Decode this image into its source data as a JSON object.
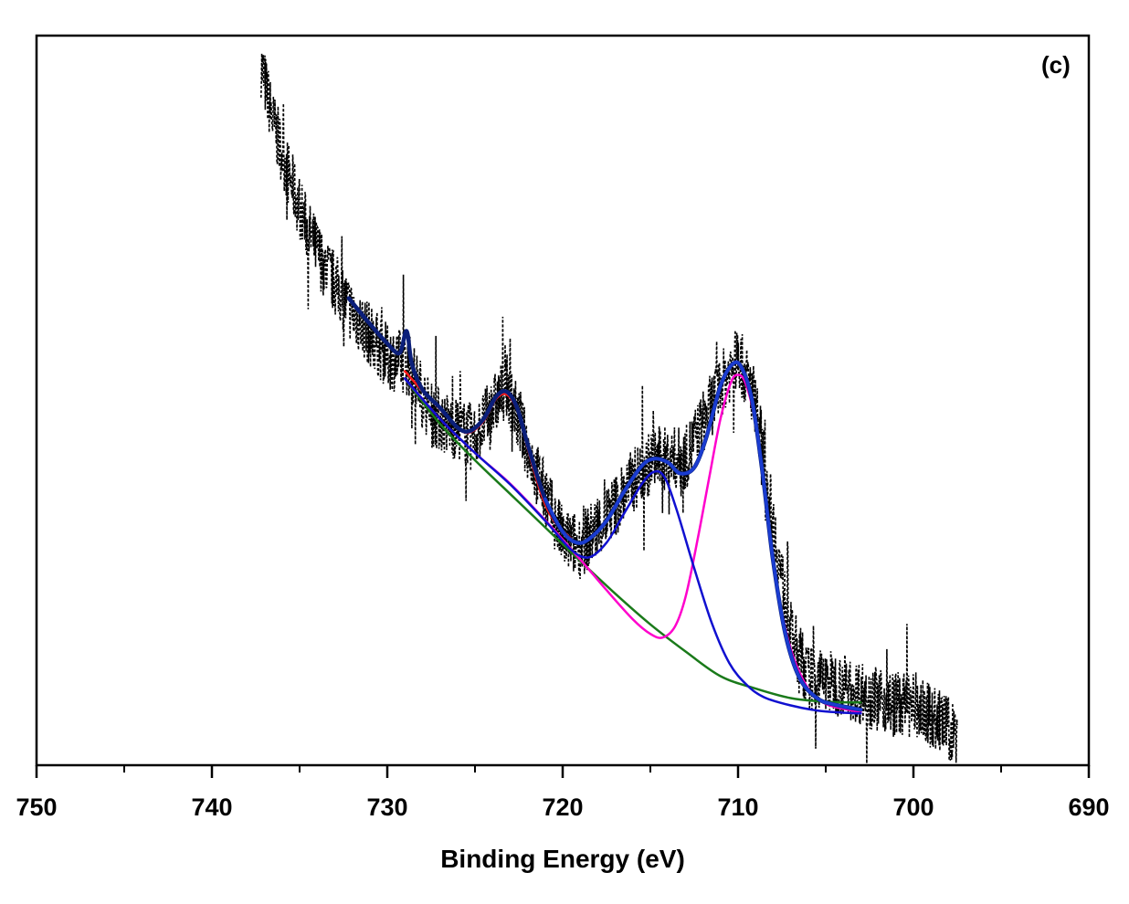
{
  "chart_data": {
    "type": "line",
    "title": "",
    "panel_label": "(c)",
    "xlabel": "Binding Energy (eV)",
    "ylabel": "",
    "xlim": [
      750,
      690
    ],
    "x_reversed": true,
    "ylim": [
      0,
      100
    ],
    "grid": false,
    "legend": "none",
    "x_ticks": [
      750,
      740,
      730,
      720,
      710,
      700,
      690
    ],
    "x_tick_labels": [
      "750",
      "740",
      "730",
      "720",
      "710",
      "700",
      "690"
    ],
    "raw_data": {
      "style": "black dashed noisy points",
      "color": "#000000",
      "x_range": [
        737.2,
        697.5
      ],
      "noise_amplitude": 4.5,
      "envelope": [
        [
          737.2,
          96
        ],
        [
          736.5,
          88
        ],
        [
          735.5,
          80
        ],
        [
          734.5,
          73
        ],
        [
          733.5,
          68
        ],
        [
          732,
          62
        ],
        [
          730,
          56
        ],
        [
          728.8,
          55
        ],
        [
          727.5,
          48
        ],
        [
          726,
          46
        ],
        [
          725,
          45
        ],
        [
          723.2,
          52
        ],
        [
          721.5,
          40
        ],
        [
          720,
          31
        ],
        [
          719,
          30
        ],
        [
          717.5,
          34
        ],
        [
          716,
          39
        ],
        [
          714.8,
          42
        ],
        [
          713,
          42
        ],
        [
          711,
          52
        ],
        [
          710,
          56
        ],
        [
          709,
          50
        ],
        [
          708,
          33
        ],
        [
          707,
          18
        ],
        [
          706,
          12
        ],
        [
          704,
          11
        ],
        [
          702,
          9
        ],
        [
          700,
          8
        ],
        [
          698.5,
          6
        ],
        [
          697.5,
          4
        ]
      ]
    },
    "series": [
      {
        "color": "#0b1f7a",
        "width": 4.5,
        "points": [
          [
            732.2,
            64
          ],
          [
            731,
            60.5
          ],
          [
            730,
            57.8
          ],
          [
            729.3,
            56.5
          ],
          [
            728.9,
            59.5
          ],
          [
            728.6,
            55
          ],
          [
            728,
            51.5
          ],
          [
            727,
            49
          ],
          [
            726,
            46.3
          ],
          [
            725.3,
            45.8
          ],
          [
            724.5,
            47.5
          ],
          [
            723.8,
            50.5
          ],
          [
            723.2,
            51.2
          ],
          [
            722.6,
            49
          ],
          [
            722,
            44
          ],
          [
            721,
            36.5
          ],
          [
            720,
            32
          ],
          [
            719.2,
            30.5
          ],
          [
            718.5,
            31
          ],
          [
            717.5,
            33.5
          ],
          [
            716.5,
            37.5
          ],
          [
            715.5,
            41
          ],
          [
            714.8,
            42
          ],
          [
            714,
            41.5
          ],
          [
            713.3,
            40
          ],
          [
            712.5,
            40.8
          ],
          [
            711.8,
            45
          ],
          [
            711,
            52
          ],
          [
            710.3,
            55
          ],
          [
            709.8,
            54.5
          ],
          [
            709.2,
            50
          ],
          [
            708.6,
            40
          ],
          [
            708,
            28
          ],
          [
            707.3,
            18
          ],
          [
            706.5,
            12
          ],
          [
            705.5,
            9.2
          ],
          [
            704.5,
            8.3
          ],
          [
            703,
            7.6
          ]
        ]
      },
      {
        "color": "#1a3cd0",
        "width": 3.5,
        "points": [
          [
            721,
            36.5
          ],
          [
            720,
            32
          ],
          [
            719.2,
            30.5
          ],
          [
            718.5,
            31
          ],
          [
            717.5,
            33.5
          ],
          [
            716.5,
            37.5
          ],
          [
            715.5,
            41
          ],
          [
            714.8,
            42
          ],
          [
            714,
            41.5
          ],
          [
            713.3,
            40
          ],
          [
            712.5,
            40.8
          ],
          [
            711.8,
            45
          ],
          [
            711,
            52
          ],
          [
            710.3,
            55
          ],
          [
            709.8,
            54.5
          ],
          [
            709.2,
            50
          ],
          [
            708.6,
            40
          ],
          [
            708,
            28
          ],
          [
            707.3,
            18
          ],
          [
            706.5,
            12
          ],
          [
            705.5,
            9.2
          ],
          [
            704.5,
            8.3
          ],
          [
            703,
            7.6
          ]
        ]
      },
      {
        "color": "#ff1a1a",
        "width": 2.5,
        "points": [
          [
            729,
            54
          ],
          [
            728,
            51.3
          ],
          [
            727,
            48.8
          ],
          [
            726,
            46.2
          ],
          [
            725.3,
            45.6
          ],
          [
            724.5,
            47.2
          ],
          [
            723.8,
            50.2
          ],
          [
            723.2,
            50.8
          ],
          [
            722.6,
            48.7
          ],
          [
            722,
            43.5
          ],
          [
            721.2,
            37
          ],
          [
            720.5,
            33.5
          ],
          [
            719.5,
            31
          ]
        ]
      },
      {
        "color": "#ff00cc",
        "width": 2.5,
        "points": [
          [
            729,
            53
          ],
          [
            727,
            47.5
          ],
          [
            725,
            42.8
          ],
          [
            723,
            38.6
          ],
          [
            721,
            33.6
          ],
          [
            719,
            28.2
          ],
          [
            717.5,
            24
          ],
          [
            716,
            20
          ],
          [
            715,
            18
          ],
          [
            714.3,
            17.5
          ],
          [
            713.6,
            19
          ],
          [
            713,
            23
          ],
          [
            712.3,
            31
          ],
          [
            711.6,
            40
          ],
          [
            711,
            47.5
          ],
          [
            710.4,
            52.5
          ],
          [
            710,
            53.5
          ],
          [
            709.6,
            52.5
          ],
          [
            709.1,
            48
          ],
          [
            708.5,
            38
          ],
          [
            707.8,
            25
          ],
          [
            707,
            16
          ],
          [
            706,
            10.5
          ],
          [
            705,
            8.4
          ],
          [
            703.5,
            7.5
          ],
          [
            703,
            7.3
          ]
        ]
      },
      {
        "color": "#1010d0",
        "width": 2.5,
        "points": [
          [
            729,
            53
          ],
          [
            727,
            47.5
          ],
          [
            725,
            42.8
          ],
          [
            723,
            38.5
          ],
          [
            721,
            33.5
          ],
          [
            719.5,
            29.5
          ],
          [
            718.5,
            28.5
          ],
          [
            717.5,
            30.5
          ],
          [
            716.5,
            34.5
          ],
          [
            715.5,
            38.5
          ],
          [
            714.8,
            40.2
          ],
          [
            714.2,
            39.5
          ],
          [
            713.5,
            35
          ],
          [
            712.5,
            27
          ],
          [
            711.5,
            19.5
          ],
          [
            710.5,
            14
          ],
          [
            709.5,
            11
          ],
          [
            708.5,
            9.3
          ],
          [
            707,
            8.2
          ],
          [
            705.5,
            7.5
          ],
          [
            704,
            7.2
          ],
          [
            703,
            7.1
          ]
        ]
      },
      {
        "color": "#1a7a1a",
        "width": 2.5,
        "points": [
          [
            729,
            53
          ],
          [
            727,
            46.8
          ],
          [
            725,
            41.8
          ],
          [
            723,
            37.2
          ],
          [
            721,
            32.6
          ],
          [
            719,
            28
          ],
          [
            717,
            23.5
          ],
          [
            715,
            19.3
          ],
          [
            713,
            15.6
          ],
          [
            711,
            12.2
          ],
          [
            709,
            10.5
          ],
          [
            707,
            9.2
          ],
          [
            705,
            8.7
          ],
          [
            703,
            8.6
          ]
        ]
      }
    ]
  }
}
